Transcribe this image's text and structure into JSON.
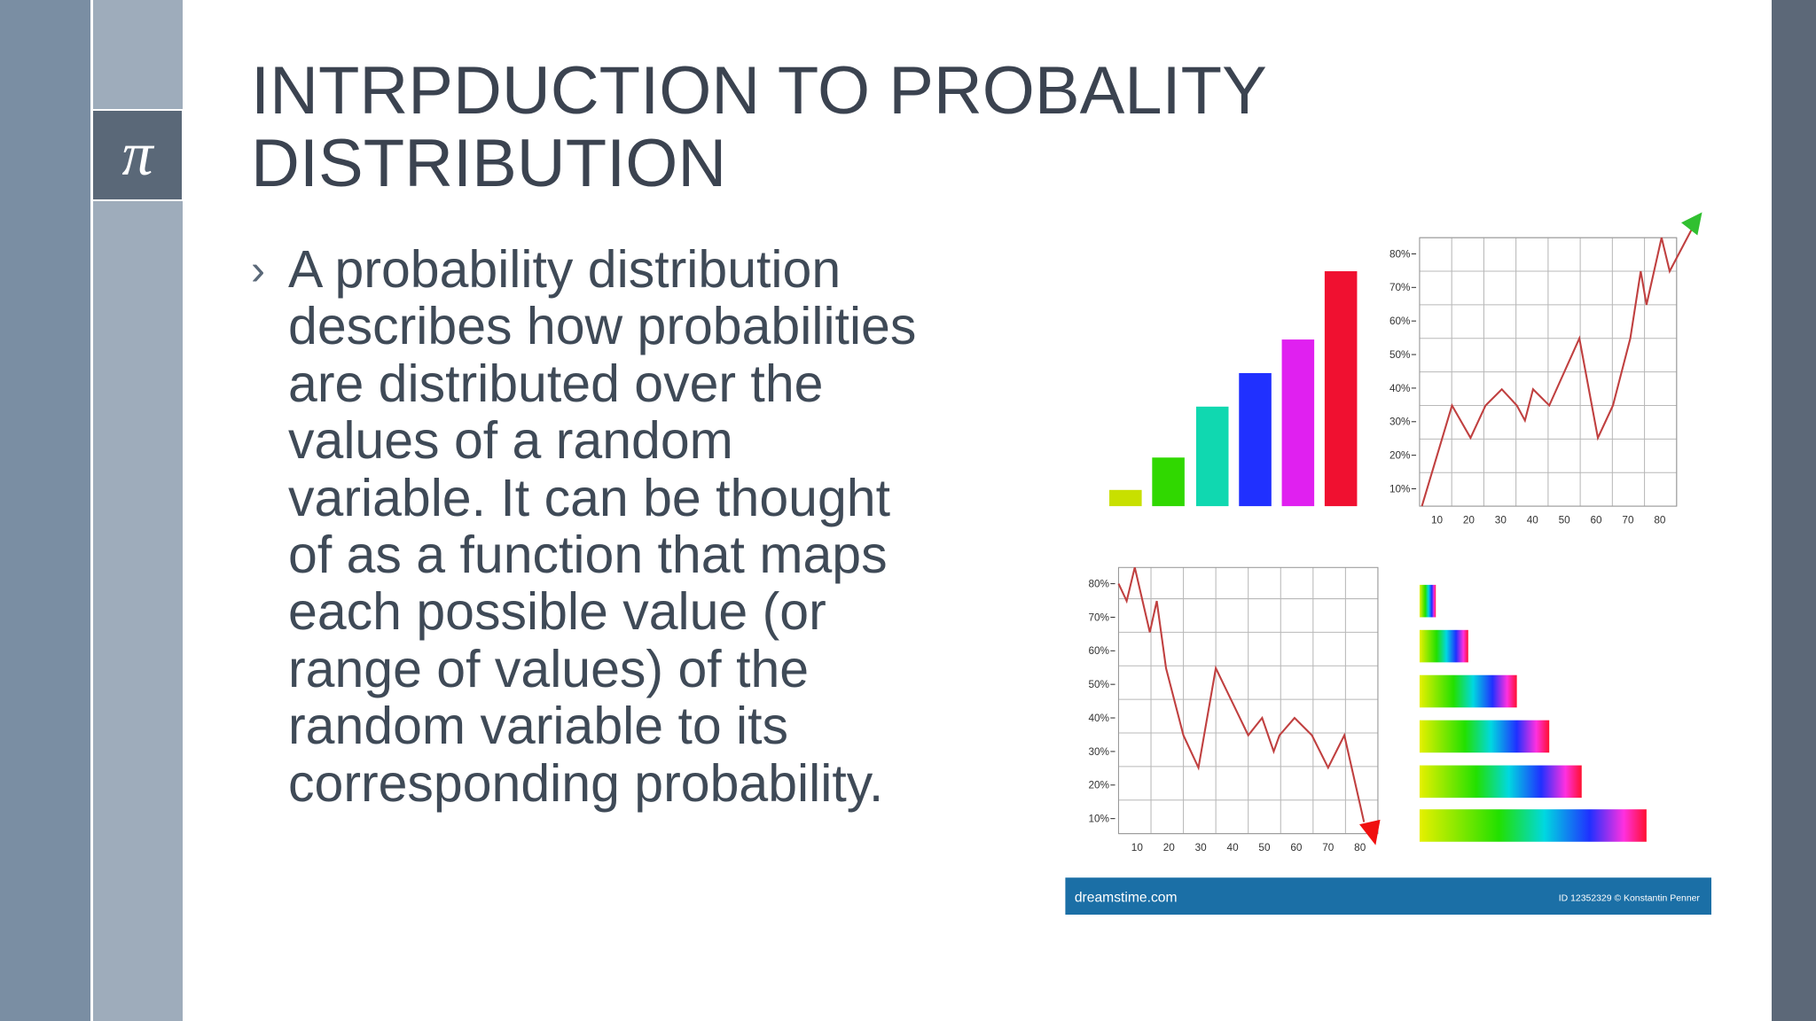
{
  "header": {
    "title": "INTRPDUCTION TO PROBALITY DISTRIBUTION"
  },
  "symbol": "π",
  "bullets": [
    "A probability distribution describes how probabilities are distributed over the values of a random variable. It can be thought of as a function that maps each possible value (or range of values) of the random variable to its corresponding probability."
  ],
  "image": {
    "top_line_chart": {
      "y_labels": [
        "80%",
        "70%",
        "60%",
        "50%",
        "40%",
        "30%",
        "20%",
        "10%"
      ],
      "x_labels": [
        "10",
        "20",
        "30",
        "40",
        "50",
        "60",
        "70",
        "80"
      ]
    },
    "bottom_line_chart": {
      "y_labels": [
        "80%",
        "70%",
        "60%",
        "50%",
        "40%",
        "30%",
        "20%",
        "10%"
      ],
      "x_labels": [
        "10",
        "20",
        "30",
        "40",
        "50",
        "60",
        "70",
        "80"
      ]
    },
    "watermark": "dreamstime.com",
    "credit": "ID 12352329 © Konstantin Penner"
  }
}
